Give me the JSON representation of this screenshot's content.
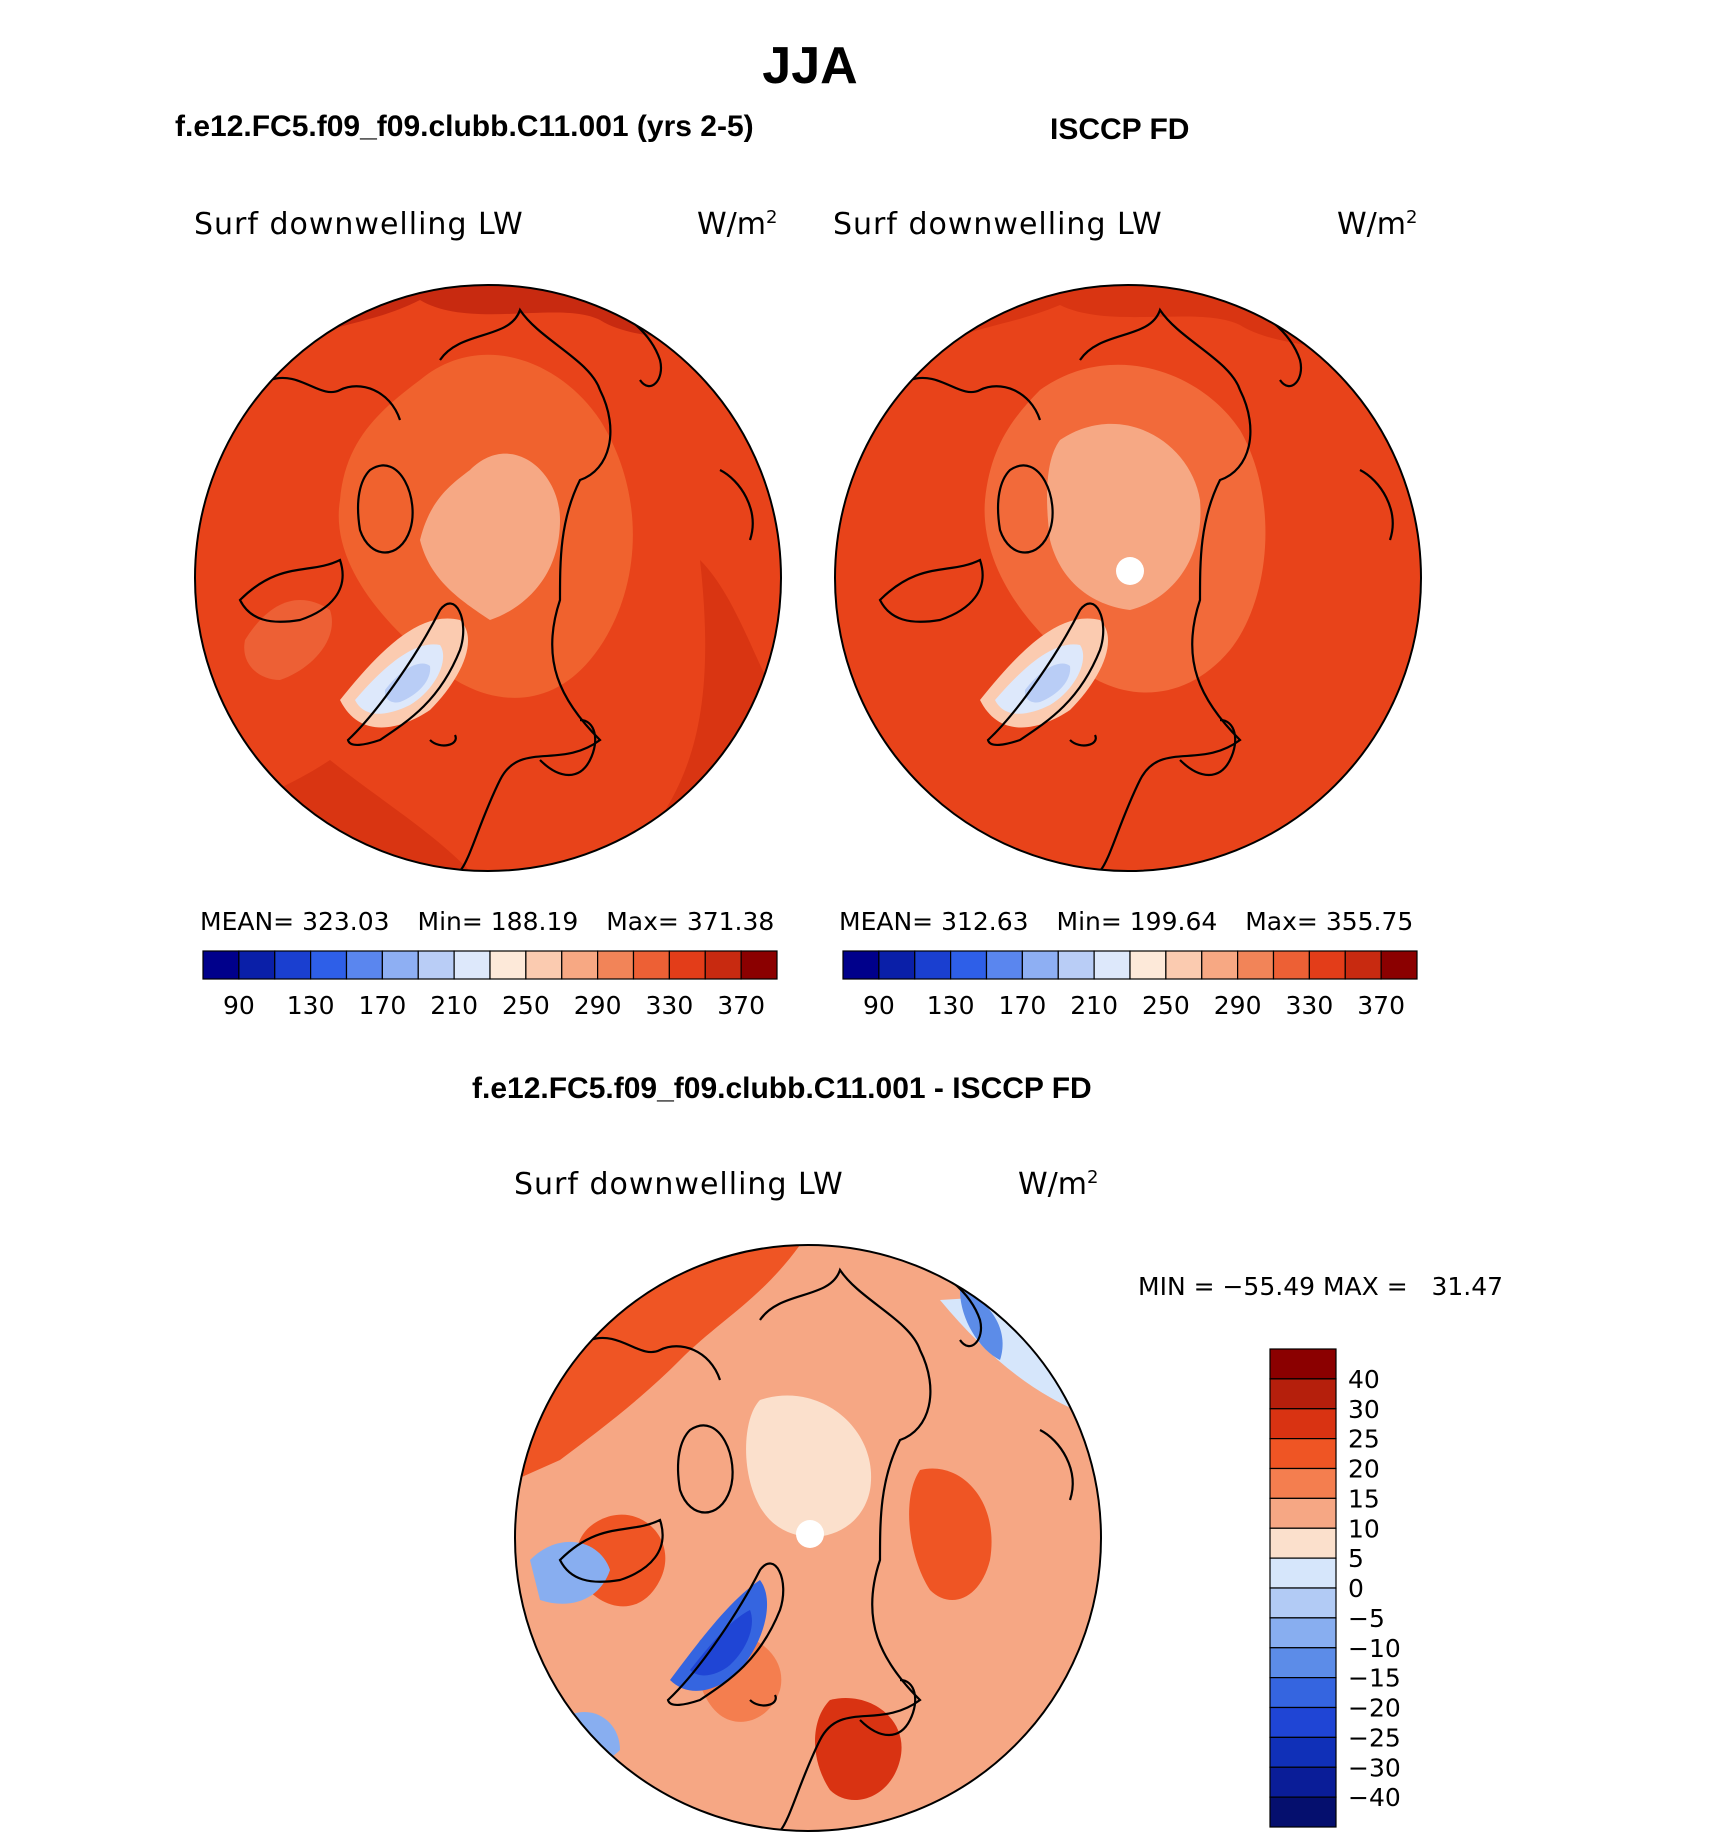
{
  "page_title": "JJA",
  "panels": [
    {
      "header": "f.e12.FC5.f09_f09.clubb.C11.001 (yrs 2-5)",
      "variable": "Surf downwelling LW",
      "units_base": "W/m",
      "units_exp": "2",
      "stats": {
        "mean_label": "MEAN=",
        "mean": "323.03",
        "min_label": "Min=",
        "min": "188.19",
        "max_label": "Max=",
        "max": "371.38"
      }
    },
    {
      "header": "ISCCP FD",
      "variable": "Surf downwelling LW",
      "units_base": "W/m",
      "units_exp": "2",
      "stats": {
        "mean_label": "MEAN=",
        "mean": "312.63",
        "min_label": "Min=",
        "min": "199.64",
        "max_label": "Max=",
        "max": "355.75"
      }
    }
  ],
  "diff_panel": {
    "header": "f.e12.FC5.f09_f09.clubb.C11.001 - ISCCP FD",
    "variable": "Surf downwelling LW",
    "units_base": "W/m",
    "units_exp": "2",
    "minmax_text": "MIN = −55.49 MAX =   31.47"
  },
  "colors": {
    "abs_scale": [
      "#00008b",
      "#0a1fa8",
      "#1a3fd0",
      "#2e5fe8",
      "#5a86ef",
      "#8eaff3",
      "#b9cdf6",
      "#dde8fb",
      "#fde9d9",
      "#fbcbb0",
      "#f7a883",
      "#f28458",
      "#ed6035",
      "#e33d19",
      "#c82a10",
      "#8b0000"
    ],
    "diff_scale_top_to_bottom": [
      "#8b0000",
      "#b51f0c",
      "#d93312",
      "#ef5524",
      "#f47e4f",
      "#f6a784",
      "#fbe0cc",
      "#d6e6fb",
      "#b2cbf5",
      "#88aef0",
      "#5c8ce8",
      "#3565e0",
      "#1f45d5",
      "#1030b8",
      "#0a1d98",
      "#050f6e"
    ]
  },
  "chart_data": [
    {
      "type": "heatmap",
      "title": "Surf downwelling LW",
      "subtitle": "f.e12.FC5.f09_f09.clubb.C11.001 (yrs 2-5)",
      "projection": "north polar stereographic",
      "units": "W/m2",
      "mean": 323.03,
      "min": 188.19,
      "max": 371.38,
      "colorbar_ticks": [
        90,
        130,
        170,
        210,
        250,
        290,
        330,
        370
      ]
    },
    {
      "type": "heatmap",
      "title": "Surf downwelling LW",
      "subtitle": "ISCCP FD",
      "projection": "north polar stereographic",
      "units": "W/m2",
      "mean": 312.63,
      "min": 199.64,
      "max": 355.75,
      "colorbar_ticks": [
        90,
        130,
        170,
        210,
        250,
        290,
        330,
        370
      ]
    },
    {
      "type": "heatmap",
      "title": "Surf downwelling LW",
      "subtitle": "f.e12.FC5.f09_f09.clubb.C11.001 - ISCCP FD",
      "projection": "north polar stereographic",
      "units": "W/m2",
      "min": -55.49,
      "max": 31.47,
      "colorbar_ticks": [
        40,
        30,
        25,
        20,
        15,
        10,
        5,
        0,
        -5,
        -10,
        -15,
        -20,
        -25,
        -30,
        -40
      ]
    }
  ]
}
